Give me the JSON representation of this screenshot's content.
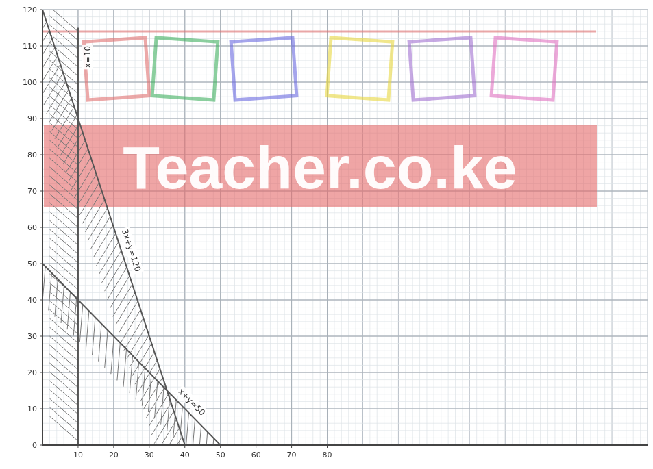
{
  "chart_data": {
    "type": "line",
    "annotations": [
      {
        "text": "Teacher.co.ke"
      }
    ],
    "series": [
      {
        "name": "3x+y=120",
        "x": [
          0,
          40
        ],
        "values": [
          120,
          0
        ],
        "color": "#555555"
      },
      {
        "name": "x+y=50",
        "x": [
          0,
          50
        ],
        "values": [
          50,
          0
        ],
        "color": "#555555"
      },
      {
        "name": "x=10",
        "x": [
          10,
          10
        ],
        "values": [
          0,
          115
        ],
        "color": "#555555"
      }
    ],
    "xlim": [
      0,
      170
    ],
    "ylim": [
      0,
      120
    ],
    "xticks": [
      10,
      20,
      30,
      40,
      50,
      60,
      70,
      80
    ],
    "yticks": [
      0,
      10,
      20,
      30,
      40,
      50,
      60,
      70,
      80,
      90,
      100,
      110,
      120
    ],
    "grid": true
  }
}
